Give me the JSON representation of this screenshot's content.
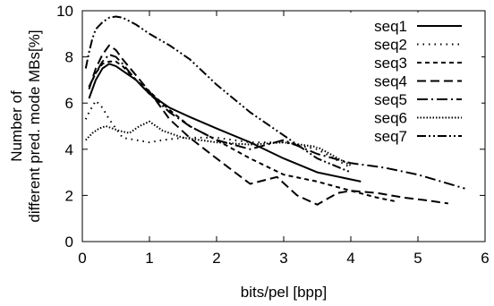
{
  "chart_data": {
    "type": "line",
    "xlabel": "bits/pel [bpp]",
    "ylabel_lines": [
      "Number of",
      "different pred. mode MBs[%]"
    ],
    "xlim": [
      0,
      6
    ],
    "ylim": [
      0,
      10
    ],
    "xticks": [
      "0",
      "1",
      "2",
      "3",
      "4",
      "5",
      "6"
    ],
    "yticks": [
      "0",
      "2",
      "4",
      "6",
      "8",
      "10"
    ],
    "grid": false,
    "legend_position": "top-right",
    "series": [
      {
        "name": "seq1",
        "dash": "solid",
        "x": [
          0.1,
          0.2,
          0.3,
          0.4,
          0.5,
          0.6,
          0.8,
          1.0,
          1.3,
          1.6,
          2.0,
          2.5,
          3.0,
          3.5,
          4.15
        ],
        "y": [
          6.2,
          7.0,
          7.5,
          7.7,
          7.6,
          7.4,
          7.0,
          6.4,
          5.8,
          5.4,
          4.9,
          4.3,
          3.6,
          3.0,
          2.6
        ]
      },
      {
        "name": "seq2",
        "dash": "dot",
        "x": [
          0.05,
          0.1,
          0.2,
          0.3,
          0.4,
          0.5,
          0.6,
          0.8,
          1.0,
          1.2,
          1.5,
          2.0,
          2.5,
          3.0,
          3.5,
          4.0
        ],
        "y": [
          5.3,
          5.6,
          6.1,
          5.8,
          5.3,
          4.9,
          4.5,
          4.4,
          4.3,
          4.4,
          4.5,
          4.5,
          4.3,
          4.3,
          4.0,
          3.2
        ]
      },
      {
        "name": "seq3",
        "dash": "short",
        "x": [
          0.1,
          0.2,
          0.3,
          0.4,
          0.5,
          0.6,
          0.8,
          1.0,
          1.3,
          1.6,
          2.0,
          2.5,
          3.0,
          3.5,
          4.0,
          4.4,
          4.65
        ],
        "y": [
          6.7,
          7.3,
          7.7,
          7.8,
          7.8,
          7.6,
          7.0,
          6.5,
          5.7,
          5.0,
          4.4,
          3.6,
          2.9,
          2.6,
          2.2,
          1.9,
          1.75
        ]
      },
      {
        "name": "seq4",
        "dash": "long",
        "x": [
          0.1,
          0.2,
          0.3,
          0.4,
          0.5,
          0.6,
          0.8,
          1.0,
          1.3,
          1.6,
          2.0,
          2.5,
          2.9,
          3.2,
          3.5,
          3.8,
          4.0,
          4.4,
          4.8,
          5.1,
          5.45
        ],
        "y": [
          6.6,
          7.5,
          8.1,
          8.5,
          8.3,
          7.9,
          7.2,
          6.5,
          5.3,
          4.5,
          3.6,
          2.5,
          2.8,
          2.0,
          1.6,
          2.1,
          2.2,
          2.1,
          1.9,
          1.8,
          1.65
        ]
      },
      {
        "name": "seq5",
        "dash": "dashdot",
        "x": [
          0.1,
          0.2,
          0.3,
          0.4,
          0.5,
          0.6,
          0.8,
          1.0,
          1.3,
          1.6,
          2.0,
          2.5,
          3.0,
          3.5,
          4.0,
          4.5,
          5.0,
          5.7
        ],
        "y": [
          6.7,
          7.3,
          7.8,
          8.1,
          8.0,
          7.7,
          7.0,
          6.4,
          5.6,
          5.0,
          4.4,
          4.0,
          4.4,
          3.8,
          3.4,
          3.2,
          2.9,
          2.3
        ]
      },
      {
        "name": "seq6",
        "dash": "densedot",
        "x": [
          0.05,
          0.15,
          0.25,
          0.35,
          0.45,
          0.55,
          0.7,
          0.85,
          1.0,
          1.2,
          1.5,
          2.0,
          2.5,
          3.0,
          3.5,
          4.0
        ],
        "y": [
          4.4,
          4.7,
          4.9,
          5.0,
          4.9,
          4.8,
          4.7,
          5.0,
          5.2,
          4.8,
          4.5,
          4.3,
          4.2,
          4.3,
          4.1,
          3.3
        ]
      },
      {
        "name": "seq7",
        "dash": "dashdotdot",
        "x": [
          0.05,
          0.1,
          0.15,
          0.2,
          0.3,
          0.4,
          0.5,
          0.6,
          0.8,
          1.0,
          1.3,
          1.6,
          2.0,
          2.5,
          3.0,
          3.5,
          4.0
        ],
        "y": [
          7.5,
          8.2,
          8.8,
          9.2,
          9.5,
          9.7,
          9.75,
          9.7,
          9.4,
          9.0,
          8.5,
          7.9,
          6.8,
          5.6,
          4.6,
          3.6,
          3.0
        ]
      }
    ]
  }
}
